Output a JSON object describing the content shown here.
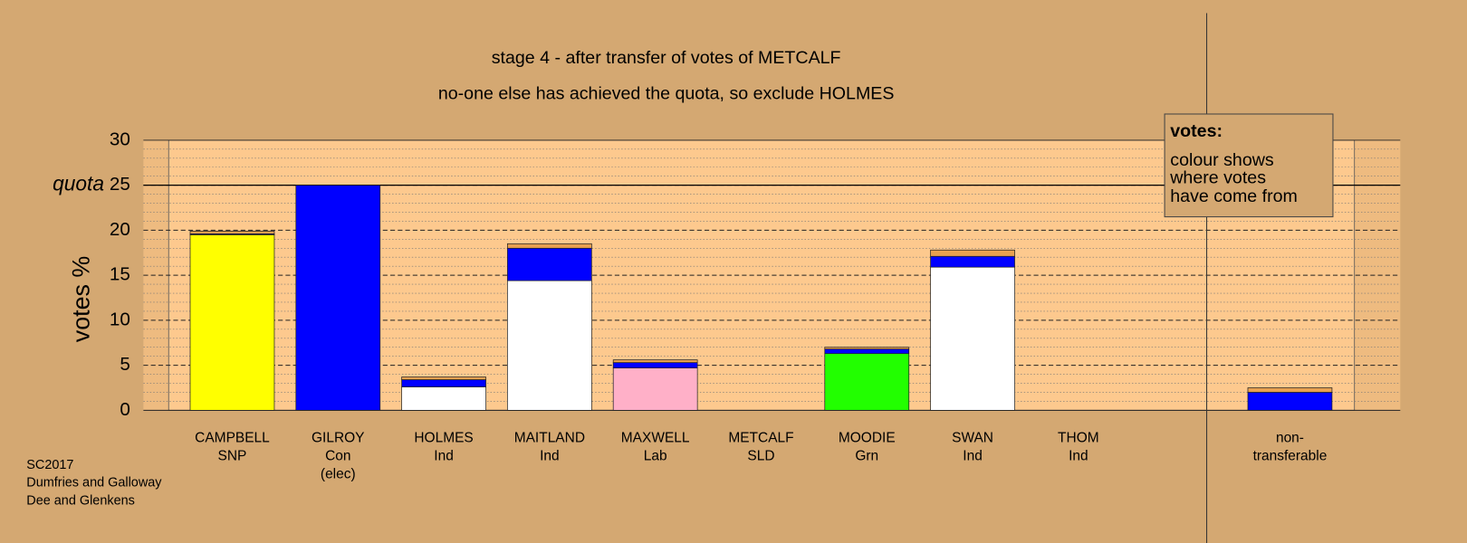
{
  "chart_data": {
    "type": "bar",
    "stacked": true,
    "title": "stage 4 - after transfer of votes of METCALF",
    "subtitle": "no-one else has achieved the quota, so exclude HOLMES",
    "y_label": "votes %",
    "quota_label": "quota",
    "quota": 25,
    "categories": [
      [
        "CAMPBELL",
        "SNP"
      ],
      [
        "GILROY",
        "Con",
        "(elec)"
      ],
      [
        "HOLMES",
        "Ind"
      ],
      [
        "MAITLAND",
        "Ind"
      ],
      [
        "MAXWELL",
        "Lab"
      ],
      [
        "METCALF",
        "SLD"
      ],
      [
        "MOODIE",
        "Grn"
      ],
      [
        "SWAN",
        "Ind"
      ],
      [
        "THOM",
        "Ind"
      ],
      null,
      [
        "non-",
        "transferable"
      ]
    ],
    "series": [
      {
        "color": "#ffff00",
        "values": [
          19.5,
          0,
          0,
          0,
          0,
          0,
          0,
          0,
          0,
          null,
          0
        ]
      },
      {
        "color": "#ffffff",
        "values": [
          0,
          0,
          2.6,
          14.4,
          0,
          0,
          0,
          15.9,
          0,
          null,
          0
        ]
      },
      {
        "color": "#ffb0c8",
        "values": [
          0,
          0,
          0,
          0,
          4.7,
          0,
          0,
          0,
          0,
          null,
          0
        ]
      },
      {
        "color": "#22ff00",
        "values": [
          0,
          0,
          0,
          0,
          0,
          0,
          6.3,
          0,
          0,
          null,
          0
        ]
      },
      {
        "color": "#0000ff",
        "values": [
          0.1,
          25,
          0.8,
          3.6,
          0.6,
          0,
          0.5,
          1.2,
          0,
          null,
          2.0
        ]
      },
      {
        "color": "#e8a050",
        "values": [
          0.3,
          0,
          0.3,
          0.5,
          0.3,
          0,
          0.2,
          0.7,
          0,
          null,
          0.5
        ]
      }
    ],
    "ylim": [
      0,
      30
    ],
    "yticks": [
      0,
      5,
      10,
      15,
      20,
      25,
      30
    ],
    "minor_yticks": [
      1,
      2,
      3,
      4,
      6,
      7,
      8,
      9,
      11,
      12,
      13,
      14,
      16,
      17,
      18,
      19,
      21,
      22,
      23,
      24,
      26,
      27,
      28,
      29
    ],
    "legend": {
      "title": "votes:",
      "lines": [
        "colour shows",
        "where votes",
        "have come from"
      ]
    },
    "footer": [
      "SC2017",
      "Dumfries and Galloway",
      "Dee and Glenkens"
    ]
  }
}
